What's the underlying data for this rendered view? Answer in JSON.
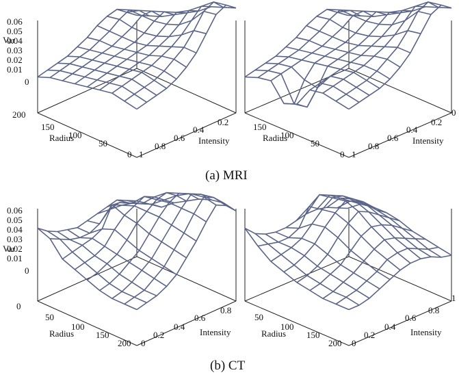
{
  "captions": {
    "mri": "(a) MRI",
    "ct": "(b) CT"
  },
  "colors": {
    "mesh": "#5a6488",
    "axis": "#222222"
  },
  "chart_data": [
    {
      "id": "mri-left",
      "type": "surface3d",
      "group": "(a) MRI",
      "zlabel": "Var",
      "xlabel": "Radius",
      "ylabel": "Intensity",
      "zticks": [
        "0.06",
        "0.05",
        "0.04",
        "0.03",
        "0.02",
        "0.01",
        "0"
      ],
      "xticks": [
        "200",
        "150",
        "100",
        "50",
        "0"
      ],
      "yticks": [
        "0.2",
        "0.4",
        "0.6",
        "0.8",
        "1"
      ],
      "xrange": [
        200,
        0
      ],
      "yrange": [
        0,
        1
      ],
      "zrange": [
        0,
        0.06
      ],
      "grid": {
        "radius": [
          200,
          175,
          150,
          125,
          100,
          75,
          50,
          25,
          0
        ],
        "intensity": [
          0,
          0.1,
          0.2,
          0.3,
          0.4,
          0.5,
          0.6,
          0.7,
          0.8,
          0.9,
          1.0
        ],
        "var": [
          [
            0.0,
            0.002,
            0.004,
            0.006,
            0.01,
            0.014,
            0.02,
            0.024,
            0.026,
            0.02,
            0.014
          ],
          [
            0.004,
            0.006,
            0.008,
            0.01,
            0.012,
            0.016,
            0.02,
            0.026,
            0.03,
            0.026,
            0.018
          ],
          [
            0.006,
            0.008,
            0.01,
            0.012,
            0.014,
            0.016,
            0.02,
            0.024,
            0.03,
            0.03,
            0.022
          ],
          [
            0.008,
            0.01,
            0.012,
            0.014,
            0.016,
            0.018,
            0.02,
            0.024,
            0.03,
            0.034,
            0.028
          ],
          [
            0.01,
            0.012,
            0.014,
            0.016,
            0.018,
            0.02,
            0.022,
            0.026,
            0.032,
            0.038,
            0.034
          ],
          [
            0.012,
            0.014,
            0.016,
            0.018,
            0.02,
            0.022,
            0.026,
            0.03,
            0.036,
            0.044,
            0.04
          ],
          [
            0.014,
            0.016,
            0.018,
            0.02,
            0.022,
            0.026,
            0.03,
            0.036,
            0.044,
            0.052,
            0.048
          ],
          [
            0.012,
            0.014,
            0.016,
            0.018,
            0.022,
            0.028,
            0.034,
            0.044,
            0.056,
            0.06,
            0.052
          ],
          [
            0.01,
            0.012,
            0.014,
            0.016,
            0.02,
            0.026,
            0.034,
            0.046,
            0.058,
            0.062,
            0.056
          ]
        ]
      }
    },
    {
      "id": "mri-right",
      "type": "surface3d",
      "group": "(a) MRI",
      "xlabel": "Radius",
      "ylabel": "Intensity",
      "xticks": [
        "150",
        "100",
        "50",
        "0"
      ],
      "yticks": [
        "0",
        "0.2",
        "0.4",
        "0.6",
        "0.8",
        "1"
      ],
      "xrange": [
        200,
        0
      ],
      "yrange": [
        0,
        1
      ],
      "zrange": [
        0,
        0.06
      ],
      "grid": {
        "radius": [
          200,
          175,
          150,
          125,
          100,
          75,
          50,
          25,
          0
        ],
        "intensity": [
          0,
          0.1,
          0.2,
          0.3,
          0.4,
          0.5,
          0.6,
          0.7,
          0.8,
          0.9,
          1.0
        ],
        "var": [
          [
            0.0,
            0.002,
            0.004,
            0.006,
            0.01,
            0.014,
            0.02,
            0.024,
            0.026,
            0.02,
            0.014
          ],
          [
            0.004,
            0.006,
            0.008,
            0.01,
            0.012,
            0.016,
            0.02,
            0.026,
            0.03,
            0.026,
            0.018
          ],
          [
            0.006,
            0.008,
            0.01,
            0.012,
            0.014,
            0.016,
            0.02,
            0.024,
            0.03,
            0.03,
            0.022
          ],
          [
            -0.008,
            -0.012,
            0.004,
            0.014,
            0.016,
            0.018,
            0.02,
            0.024,
            0.03,
            0.034,
            0.028
          ],
          [
            -0.004,
            -0.01,
            0.002,
            0.016,
            0.018,
            0.02,
            0.022,
            0.026,
            0.032,
            0.038,
            0.034
          ],
          [
            0.012,
            0.014,
            0.016,
            0.018,
            0.02,
            0.022,
            0.026,
            0.03,
            0.036,
            0.044,
            0.04
          ],
          [
            0.014,
            0.016,
            0.018,
            0.02,
            0.022,
            0.026,
            0.03,
            0.036,
            0.044,
            0.052,
            0.048
          ],
          [
            0.012,
            0.014,
            0.016,
            0.018,
            0.022,
            0.028,
            0.034,
            0.044,
            0.056,
            0.06,
            0.052
          ],
          [
            0.01,
            0.012,
            0.014,
            0.016,
            0.02,
            0.026,
            0.034,
            0.046,
            0.058,
            0.062,
            0.056
          ]
        ]
      }
    },
    {
      "id": "ct-left",
      "type": "surface3d",
      "group": "(b) CT",
      "zlabel": "Var",
      "xlabel": "Radius",
      "ylabel": "Intensity",
      "zticks": [
        "0.06",
        "0.05",
        "0.04",
        "0.03",
        "0.02",
        "0.01",
        "0"
      ],
      "xticks": [
        "50",
        "100",
        "150",
        "200"
      ],
      "yticks": [
        "0",
        "0.2",
        "0.4",
        "0.6",
        "0.8"
      ],
      "xrange": [
        0,
        200
      ],
      "yrange": [
        0,
        1
      ],
      "zrange": [
        0,
        0.06
      ],
      "grid": {
        "radius": [
          0,
          25,
          50,
          75,
          100,
          125,
          150,
          175,
          200
        ],
        "intensity": [
          0,
          0.1,
          0.2,
          0.3,
          0.4,
          0.5,
          0.6,
          0.7,
          0.8,
          0.9,
          1.0
        ],
        "var": [
          [
            0.03,
            0.024,
            0.02,
            0.018,
            0.016,
            0.018,
            0.02,
            0.022,
            0.024,
            0.02,
            0.016
          ],
          [
            0.026,
            0.022,
            0.018,
            0.016,
            0.016,
            0.02,
            0.028,
            0.03,
            0.026,
            0.022,
            0.018
          ],
          [
            0.014,
            0.016,
            0.018,
            0.02,
            0.024,
            0.04,
            0.036,
            0.034,
            0.03,
            0.026,
            0.02
          ],
          [
            0.01,
            0.012,
            0.014,
            0.018,
            0.028,
            0.036,
            0.04,
            0.044,
            0.04,
            0.034,
            0.028
          ],
          [
            0.006,
            0.008,
            0.012,
            0.016,
            0.024,
            0.034,
            0.04,
            0.046,
            0.048,
            0.042,
            0.034
          ],
          [
            0.002,
            0.004,
            0.008,
            0.014,
            0.02,
            0.03,
            0.04,
            0.048,
            0.052,
            0.048,
            0.04
          ],
          [
            0.0,
            0.002,
            0.006,
            0.012,
            0.018,
            0.028,
            0.038,
            0.048,
            0.056,
            0.052,
            0.044
          ],
          [
            0.0,
            0.002,
            0.004,
            0.01,
            0.016,
            0.026,
            0.036,
            0.048,
            0.058,
            0.054,
            0.046
          ],
          [
            0.0,
            0.002,
            0.004,
            0.008,
            0.014,
            0.024,
            0.034,
            0.046,
            0.056,
            0.052,
            0.044
          ]
        ]
      }
    },
    {
      "id": "ct-right",
      "type": "surface3d",
      "group": "(b) CT",
      "xlabel": "Radius",
      "ylabel": "Intensity",
      "xticks": [
        "50",
        "100",
        "150",
        "200"
      ],
      "yticks": [
        "0",
        "0.2",
        "0.4",
        "0.6",
        "0.8",
        "1"
      ],
      "xrange": [
        0,
        200
      ],
      "yrange": [
        0,
        1
      ],
      "zrange": [
        0,
        0.06
      ],
      "grid": {
        "radius": [
          0,
          25,
          50,
          75,
          100,
          125,
          150,
          175,
          200
        ],
        "intensity": [
          0,
          0.1,
          0.2,
          0.3,
          0.4,
          0.5,
          0.6,
          0.7,
          0.8,
          0.9,
          1.0
        ],
        "var": [
          [
            0.03,
            0.022,
            0.018,
            0.016,
            0.016,
            0.018,
            0.02,
            0.02,
            0.018,
            0.014,
            0.01
          ],
          [
            0.02,
            0.018,
            0.016,
            0.016,
            0.02,
            0.034,
            0.04,
            0.036,
            0.03,
            0.024,
            0.018
          ],
          [
            0.012,
            0.014,
            0.016,
            0.02,
            0.028,
            0.036,
            0.042,
            0.04,
            0.034,
            0.028,
            0.02
          ],
          [
            0.008,
            0.01,
            0.014,
            0.02,
            0.03,
            0.038,
            0.044,
            0.04,
            0.034,
            0.026,
            0.02
          ],
          [
            0.004,
            0.006,
            0.01,
            0.016,
            0.026,
            0.034,
            0.04,
            0.036,
            0.03,
            0.024,
            0.018
          ],
          [
            0.002,
            0.004,
            0.008,
            0.012,
            0.02,
            0.028,
            0.032,
            0.03,
            0.026,
            0.02,
            0.014
          ],
          [
            0.0,
            0.002,
            0.006,
            0.01,
            0.016,
            0.022,
            0.026,
            0.024,
            0.02,
            0.016,
            0.012
          ],
          [
            0.0,
            0.002,
            0.004,
            0.008,
            0.012,
            0.018,
            0.02,
            0.02,
            0.016,
            0.012,
            0.01
          ],
          [
            0.0,
            0.0,
            0.002,
            0.006,
            0.01,
            0.014,
            0.016,
            0.016,
            0.014,
            0.01,
            0.008
          ]
        ]
      }
    }
  ]
}
